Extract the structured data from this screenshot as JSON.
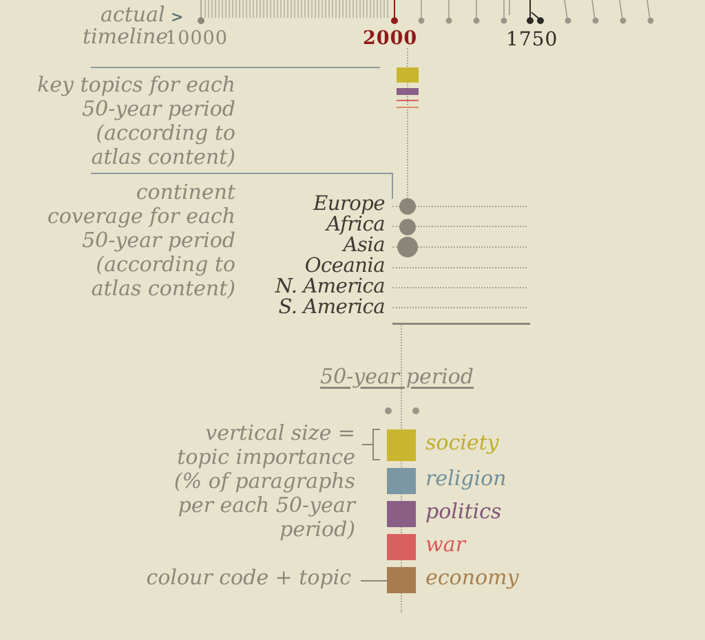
{
  "timeline": {
    "actual_label": "actual",
    "arrow": ">",
    "timeline_label": "timeline",
    "start_year": "10000",
    "highlight_year": "2000",
    "mark_year": "1750"
  },
  "key_topics_label": [
    "key topics for each",
    "50-year period",
    "(according  to",
    "atlas content)"
  ],
  "continent_label": [
    "continent",
    "coverage for each",
    "50-year period",
    "(according to",
    "atlas content)"
  ],
  "continents": [
    "Europe",
    "Africa",
    "Asia",
    "Oceania",
    "N. America",
    "S. America"
  ],
  "period_label": "50-year period",
  "size_note": [
    "vertical size =",
    "topic importance",
    "(% of paragraphs",
    "per each 50-year",
    "period)"
  ],
  "colour_note": "colour code + topic",
  "topics": [
    {
      "name": "society",
      "color": "#c9b62e"
    },
    {
      "name": "religion",
      "color": "#7b97a3"
    },
    {
      "name": "politics",
      "color": "#8a5f86"
    },
    {
      "name": "war",
      "color": "#d96060"
    },
    {
      "name": "economy",
      "color": "#a97b4f"
    }
  ],
  "colors": {
    "background": "#e8e3cc",
    "label_grey": "#8c877a",
    "highlight_red": "#8e1b1b",
    "dark": "#2d2a26"
  }
}
